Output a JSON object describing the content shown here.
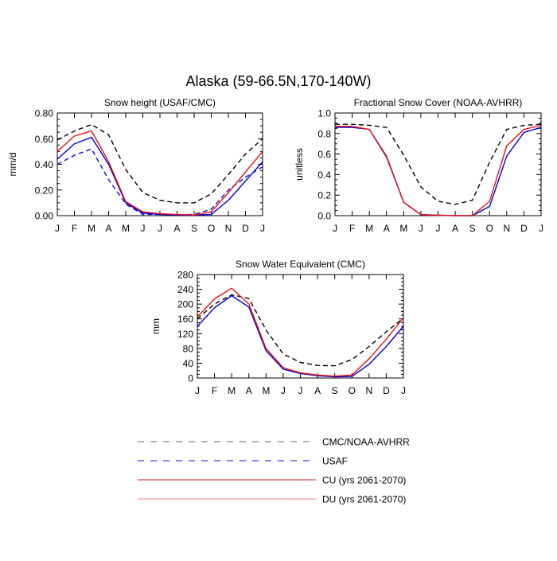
{
  "figure_title": "Alaska (59-66.5N,170-140W)",
  "months": [
    "J",
    "F",
    "M",
    "A",
    "M",
    "J",
    "J",
    "A",
    "S",
    "O",
    "N",
    "D",
    "J"
  ],
  "colors": {
    "obs": "#000000",
    "usaf": "#1010e6",
    "cu": "#0000dd",
    "du": "#ee1111",
    "legend_cu": "#cc2222",
    "legend_du": "#ff8080"
  },
  "legend": [
    {
      "label": "CMC/NOAA-AVHRR",
      "color": "#666666",
      "dash": true
    },
    {
      "label": "USAF",
      "color": "#1010e6",
      "dash": true
    },
    {
      "label": "CU (yrs 2061-2070)",
      "color": "#cc2222",
      "dash": false
    },
    {
      "label": "DU (yrs 2061-2070)",
      "color": "#ff8080",
      "dash": false
    }
  ],
  "chart_data": [
    {
      "type": "line",
      "title": "Snow height (USAF/CMC)",
      "xlabel": "",
      "ylabel": "mm/d",
      "categories": [
        "J",
        "F",
        "M",
        "A",
        "M",
        "J",
        "J",
        "A",
        "S",
        "O",
        "N",
        "D",
        "J"
      ],
      "ylim": [
        0,
        0.8
      ],
      "yticks": [
        0,
        0.2,
        0.4,
        0.6,
        0.8
      ],
      "ytick_labels": [
        "0.00",
        "0.20",
        "0.40",
        "0.60",
        "0.80"
      ],
      "series": [
        {
          "name": "CMC",
          "style": "obs",
          "values": [
            0.59,
            0.66,
            0.71,
            0.63,
            0.36,
            0.18,
            0.12,
            0.1,
            0.1,
            0.17,
            0.32,
            0.48,
            0.6
          ]
        },
        {
          "name": "USAF",
          "style": "usaf",
          "values": [
            0.4,
            0.47,
            0.52,
            0.28,
            0.09,
            0.01,
            0.01,
            0.005,
            0.01,
            0.05,
            0.2,
            0.3,
            0.38
          ]
        },
        {
          "name": "CU (yrs 2061-2070)",
          "style": "cu",
          "values": [
            0.44,
            0.56,
            0.61,
            0.4,
            0.1,
            0.02,
            0.01,
            0.005,
            0.005,
            0.01,
            0.12,
            0.27,
            0.42
          ]
        },
        {
          "name": "DU (yrs 2061-2070)",
          "style": "du",
          "values": [
            0.5,
            0.62,
            0.66,
            0.42,
            0.11,
            0.03,
            0.015,
            0.01,
            0.005,
            0.03,
            0.18,
            0.34,
            0.5
          ]
        }
      ]
    },
    {
      "type": "line",
      "title": "Fractional Snow Cover (NOAA-AVHRR)",
      "xlabel": "",
      "ylabel": "unitless",
      "categories": [
        "J",
        "F",
        "M",
        "A",
        "M",
        "J",
        "J",
        "A",
        "S",
        "O",
        "N",
        "D",
        "J"
      ],
      "ylim": [
        0,
        1
      ],
      "yticks": [
        0,
        0.2,
        0.4,
        0.6,
        0.8,
        1.0
      ],
      "ytick_labels": [
        "0.0",
        "0.2",
        "0.4",
        "0.6",
        "0.8",
        "1.0"
      ],
      "series": [
        {
          "name": "NOAA-AVHRR",
          "style": "obs",
          "values": [
            0.89,
            0.89,
            0.88,
            0.86,
            0.59,
            0.28,
            0.14,
            0.11,
            0.15,
            0.52,
            0.84,
            0.88,
            0.89
          ]
        },
        {
          "name": "CU (yrs 2061-2070)",
          "style": "cu",
          "values": [
            0.86,
            0.86,
            0.84,
            0.57,
            0.13,
            0.01,
            0.005,
            0.0,
            0.0,
            0.09,
            0.58,
            0.81,
            0.86
          ]
        },
        {
          "name": "DU (yrs 2061-2070)",
          "style": "du",
          "values": [
            0.87,
            0.87,
            0.84,
            0.58,
            0.13,
            0.01,
            0.005,
            0.0,
            0.0,
            0.14,
            0.68,
            0.84,
            0.88
          ]
        }
      ]
    },
    {
      "type": "line",
      "title": "Snow Water Equivalent (CMC)",
      "xlabel": "",
      "ylabel": "mm",
      "categories": [
        "J",
        "F",
        "M",
        "A",
        "M",
        "J",
        "J",
        "A",
        "S",
        "O",
        "N",
        "D",
        "J"
      ],
      "ylim": [
        0,
        280
      ],
      "yticks": [
        0,
        40,
        80,
        120,
        160,
        200,
        240,
        280
      ],
      "ytick_labels": [
        "0",
        "40",
        "80",
        "120",
        "160",
        "200",
        "240",
        "280"
      ],
      "series": [
        {
          "name": "CMC",
          "style": "obs",
          "values": [
            160,
            200,
            225,
            215,
            130,
            65,
            42,
            34,
            33,
            50,
            85,
            125,
            162
          ]
        },
        {
          "name": "CU (yrs 2061-2070)",
          "style": "cu",
          "values": [
            140,
            190,
            223,
            192,
            74,
            24,
            12,
            6,
            3,
            4,
            37,
            85,
            140
          ]
        },
        {
          "name": "DU (yrs 2061-2070)",
          "style": "du",
          "values": [
            165,
            214,
            243,
            200,
            80,
            28,
            14,
            8,
            5,
            8,
            52,
            105,
            163
          ]
        }
      ]
    }
  ]
}
